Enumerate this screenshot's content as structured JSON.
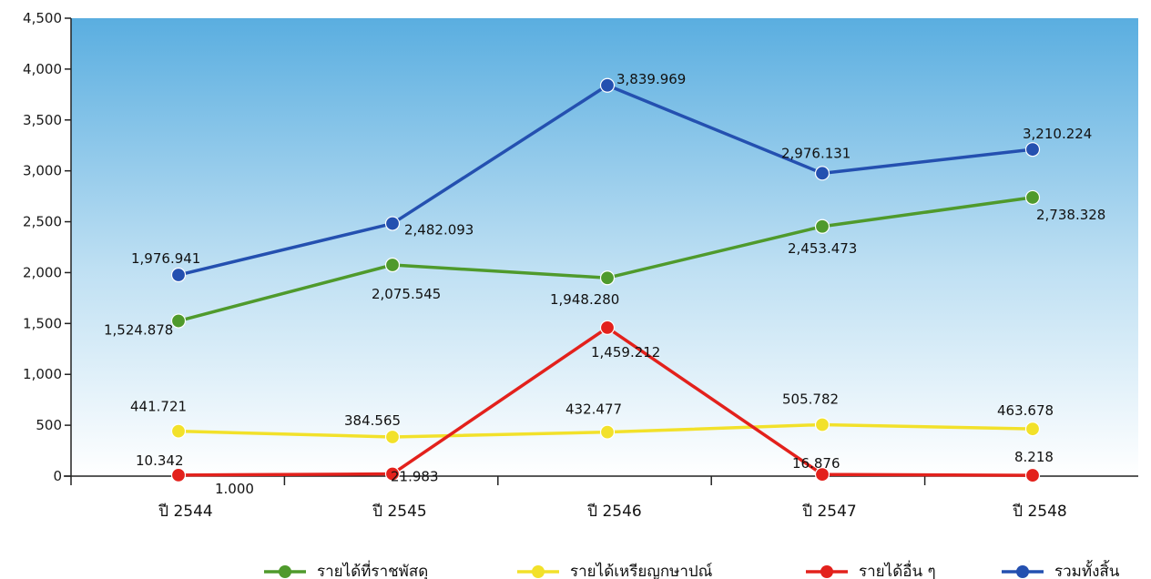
{
  "chart_data": {
    "type": "line",
    "categories": [
      "ปี  2544",
      "ปี  2545",
      "ปี  2546",
      "ปี  2547",
      "ปี  2548"
    ],
    "ylim": [
      0,
      4500
    ],
    "yticks": [
      "0",
      "500",
      "1,000",
      "1,500",
      "2,000",
      "2,500",
      "3,000",
      "3,500",
      "4,000",
      "4,500"
    ],
    "grid": false,
    "legend_position": "bottom",
    "series": [
      {
        "name": "รายได้ที่ราชพัสดุ",
        "color": "#4f9a2c",
        "values": [
          1524.878,
          2075.545,
          1948.28,
          2453.473,
          2738.328
        ],
        "labels": [
          "1,524.878",
          "2,075.545",
          "1,948.280",
          "2,453.473",
          "2,738.328"
        ]
      },
      {
        "name": "รายได้เหรียญกษาปณ์",
        "color": "#f2e12a",
        "values": [
          441.721,
          384.565,
          432.477,
          505.782,
          463.678
        ],
        "labels": [
          "441.721",
          "384.565",
          "432.477",
          "505.782",
          "463.678"
        ]
      },
      {
        "name": "รายได้อื่น ๆ",
        "color": "#e3211c",
        "values": [
          10.342,
          21.983,
          1459.212,
          16.876,
          8.218
        ],
        "labels": [
          "10.342",
          "21.983",
          "1,459.212",
          "16.876",
          "8.218"
        ]
      },
      {
        "name": "รวมทั้งสิ้น",
        "color": "#2450b0",
        "values": [
          1976.941,
          2482.093,
          3839.969,
          2976.131,
          3210.224
        ],
        "labels": [
          "1,976.941",
          "2,482.093",
          "3,839.969",
          "2,976.131",
          "3,210.224"
        ]
      }
    ],
    "annotations": [
      "1.000"
    ]
  }
}
